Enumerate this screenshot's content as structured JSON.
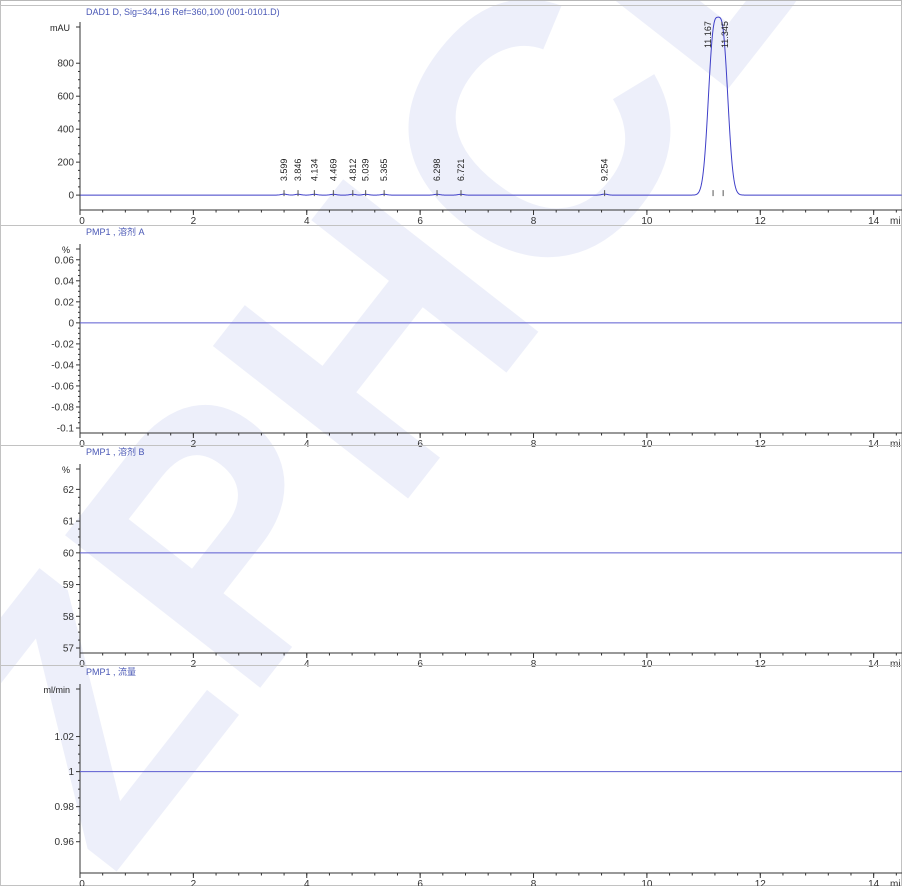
{
  "colors": {
    "trace": "#3f3fc8",
    "title": "#4a58b6",
    "axis": "#333333",
    "watermark": "#dfe3f6"
  },
  "watermark_text": "ZPHCD",
  "chart_data": [
    {
      "type": "line",
      "title": "DAD1 D, Sig=344,16 Ref=360,100 (001-0101.D)",
      "ylabel": "mAU",
      "xlabel": "mi",
      "xlim": [
        0,
        14.5
      ],
      "ylim": [
        -60,
        1050
      ],
      "y_ticks": [
        0,
        200,
        400,
        600,
        800
      ],
      "x_ticks": [
        0,
        2,
        4,
        6,
        8,
        10,
        12,
        14
      ],
      "grid": false,
      "baseline": 0,
      "peaks": [
        {
          "rt": 3.599,
          "height": 6,
          "width": 0.05
        },
        {
          "rt": 3.846,
          "height": 5,
          "width": 0.05
        },
        {
          "rt": 4.134,
          "height": 5,
          "width": 0.05
        },
        {
          "rt": 4.469,
          "height": 5,
          "width": 0.05
        },
        {
          "rt": 4.812,
          "height": 5,
          "width": 0.05
        },
        {
          "rt": 5.039,
          "height": 5,
          "width": 0.05
        },
        {
          "rt": 5.365,
          "height": 5,
          "width": 0.05
        },
        {
          "rt": 6.298,
          "height": 5,
          "width": 0.05
        },
        {
          "rt": 6.721,
          "height": 5,
          "width": 0.05
        },
        {
          "rt": 9.254,
          "height": 6,
          "width": 0.05
        },
        {
          "rt": 11.167,
          "height": 880,
          "width": 0.09
        },
        {
          "rt": 11.345,
          "height": 880,
          "width": 0.09
        }
      ],
      "peak_labels": [
        {
          "text": "3.599",
          "rt": 3.599
        },
        {
          "text": "3.846",
          "rt": 3.846
        },
        {
          "text": "4.134",
          "rt": 4.134
        },
        {
          "text": "4.469",
          "rt": 4.469
        },
        {
          "text": "4.812",
          "rt": 4.812
        },
        {
          "text": "5.039",
          "rt": 5.039
        },
        {
          "text": "5.365",
          "rt": 5.365
        },
        {
          "text": "6.298",
          "rt": 6.298
        },
        {
          "text": "6.721",
          "rt": 6.721
        },
        {
          "text": "9.254",
          "rt": 9.254
        },
        {
          "text": "11.167",
          "rt": 11.167
        },
        {
          "text": "11.345",
          "rt": 11.345
        }
      ]
    },
    {
      "type": "line",
      "title": "PMP1 , 溶剂 A",
      "ylabel": "%",
      "xlabel": "mi",
      "xlim": [
        0,
        14.5
      ],
      "ylim": [
        -0.1,
        0.075
      ],
      "y_ticks": [
        -0.1,
        -0.08,
        -0.06,
        -0.04,
        -0.02,
        0,
        0.02,
        0.04,
        0.06
      ],
      "y_tick_labels": [
        "-0.1",
        "-0.08",
        "-0.06",
        "-0.04",
        "-0.02",
        "0",
        "0.02",
        "0.04",
        "0.06"
      ],
      "x_ticks": [
        0,
        2,
        4,
        6,
        8,
        10,
        12,
        14
      ],
      "grid": false,
      "constant_value": 0
    },
    {
      "type": "line",
      "title": "PMP1 , 溶剂 B",
      "ylabel": "%",
      "xlabel": "mi",
      "xlim": [
        0,
        14.5
      ],
      "ylim": [
        57,
        62.8
      ],
      "y_ticks": [
        57,
        58,
        59,
        60,
        61,
        62
      ],
      "x_ticks": [
        0,
        2,
        4,
        6,
        8,
        10,
        12,
        14
      ],
      "grid": false,
      "constant_value": 60
    },
    {
      "type": "line",
      "title": "PMP1 , 流量",
      "ylabel": "ml/min",
      "xlabel": "mi",
      "xlim": [
        0,
        14.5
      ],
      "ylim": [
        0.945,
        1.05
      ],
      "y_ticks": [
        0.96,
        0.98,
        1,
        1.02
      ],
      "y_tick_labels": [
        "0.96",
        "0.98",
        "1",
        "1.02"
      ],
      "x_ticks": [
        0,
        2,
        4,
        6,
        8,
        10,
        12,
        14
      ],
      "grid": false,
      "constant_value": 1
    }
  ]
}
